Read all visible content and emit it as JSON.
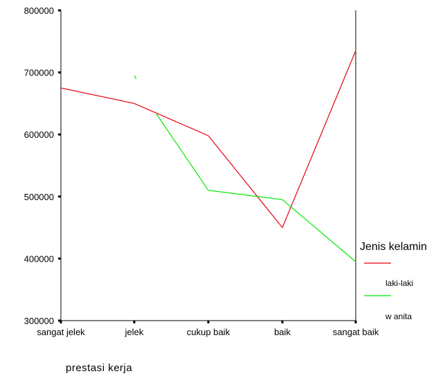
{
  "chart_data": {
    "type": "line",
    "title": "",
    "xlabel": "prestasi  kerja",
    "ylabel": "",
    "categories": [
      "sangat jelek",
      "jelek",
      "cukup baik",
      "baik",
      "sangat baik"
    ],
    "ylim": [
      300000,
      800000
    ],
    "yticks": [
      300000,
      400000,
      500000,
      600000,
      700000,
      800000
    ],
    "ytick_labels": [
      "300000",
      "400000",
      "500000",
      "600000",
      "700000",
      "800000"
    ],
    "grid": false,
    "legend": {
      "title": "Jenis kelamin",
      "placement": "right"
    },
    "series": [
      {
        "name": "laki-laki",
        "color": "#e8000b",
        "values": [
          675000,
          650000,
          598000,
          450000,
          735000
        ]
      },
      {
        "name": "w anita",
        "color": "#00e800",
        "values": [
          null,
          695000,
          510000,
          495000,
          395000
        ],
        "extra_points": [
          [
            1.3,
            633000
          ]
        ]
      }
    ]
  }
}
